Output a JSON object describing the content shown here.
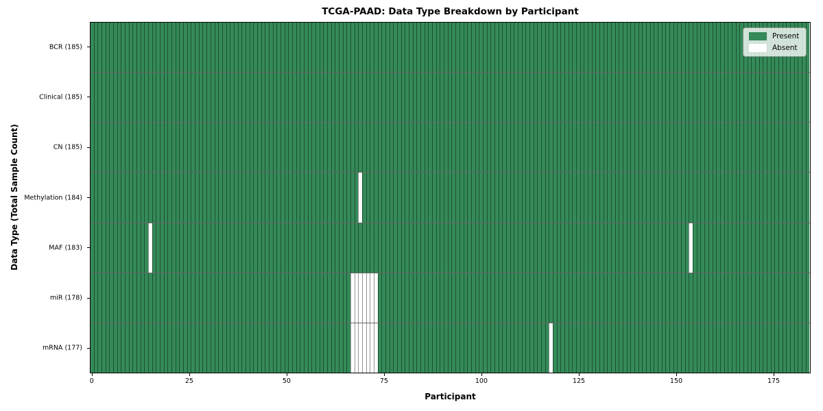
{
  "title": "TCGA-PAAD: Data Type Breakdown by Participant",
  "axes": {
    "xlabel": "Participant",
    "ylabel": "Data Type (Total Sample Count)"
  },
  "legend": {
    "position": "upper right",
    "items": [
      {
        "label": "Present",
        "color": "#348a58"
      },
      {
        "label": "Absent",
        "color": "#ffffff"
      }
    ]
  },
  "chart_data": {
    "type": "heatmap",
    "title": "TCGA-PAAD: Data Type Breakdown by Participant",
    "xlabel": "Participant",
    "ylabel": "Data Type (Total Sample Count)",
    "n_participants": 185,
    "xlim": [
      -0.5,
      184.5
    ],
    "xticks": [
      0,
      25,
      50,
      75,
      100,
      125,
      150,
      175
    ],
    "colors": {
      "present": "#348a58",
      "absent": "#ffffff"
    },
    "legend_entries": [
      "Present",
      "Absent"
    ],
    "rows": [
      {
        "data_type": "BCR",
        "label": "BCR (185)",
        "present_count": 185,
        "absent_participants": []
      },
      {
        "data_type": "Clinical",
        "label": "Clinical (185)",
        "present_count": 185,
        "absent_participants": []
      },
      {
        "data_type": "CN",
        "label": "CN (185)",
        "present_count": 185,
        "absent_participants": []
      },
      {
        "data_type": "Methylation",
        "label": "Methylation (184)",
        "present_count": 184,
        "absent_participants": [
          69
        ]
      },
      {
        "data_type": "MAF",
        "label": "MAF (183)",
        "present_count": 183,
        "absent_participants": [
          15,
          154
        ]
      },
      {
        "data_type": "miR",
        "label": "miR (178)",
        "present_count": 178,
        "absent_participants": [
          67,
          68,
          69,
          70,
          71,
          72,
          73
        ]
      },
      {
        "data_type": "mRNA",
        "label": "mRNA (177)",
        "present_count": 177,
        "absent_participants": [
          67,
          68,
          69,
          70,
          71,
          72,
          73,
          118
        ]
      }
    ]
  }
}
